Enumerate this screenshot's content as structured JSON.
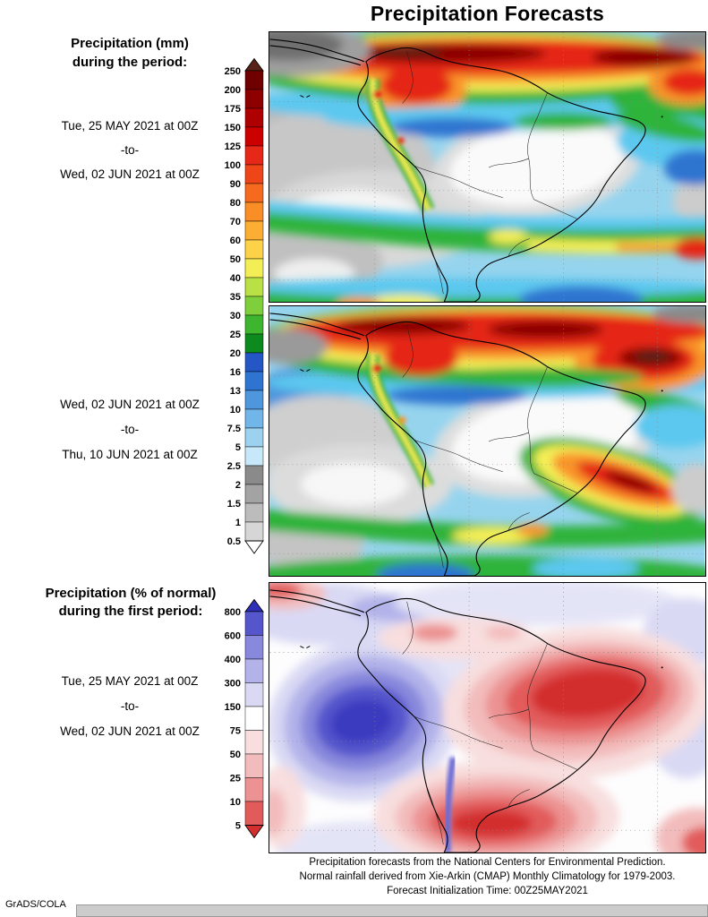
{
  "title": "Precipitation Forecasts",
  "left_column": {
    "block1": {
      "heading1": "Precipitation (mm)",
      "heading2": "during the period:",
      "start": "Tue, 25 MAY 2021 at 00Z",
      "to": "-to-",
      "end": "Wed, 02 JUN 2021 at 00Z"
    },
    "block2": {
      "start": "Wed, 02 JUN 2021 at 00Z",
      "to": "-to-",
      "end": "Thu, 10 JUN 2021 at 00Z"
    },
    "block3": {
      "heading1": "Precipitation (% of normal)",
      "heading2": "during the first period:",
      "start": "Tue, 25 MAY 2021 at 00Z",
      "to": "-to-",
      "end": "Wed, 02 JUN 2021 at 00Z"
    }
  },
  "colorbar_mm": {
    "units": "mm",
    "arrow_top": "#5a2317",
    "arrow_bottom": "#ffffff",
    "labels": [
      "250",
      "200",
      "175",
      "150",
      "125",
      "100",
      "90",
      "80",
      "70",
      "60",
      "50",
      "40",
      "35",
      "30",
      "25",
      "20",
      "16",
      "13",
      "10",
      "7.5",
      "5",
      "2.5",
      "2",
      "1.5",
      "1",
      "0.5"
    ],
    "colors": [
      "#700000",
      "#8e0000",
      "#ae0000",
      "#cd0000",
      "#e52817",
      "#ef4619",
      "#f56a1e",
      "#f98d26",
      "#fbae33",
      "#fdd148",
      "#f4ee56",
      "#b9e045",
      "#7fce3c",
      "#3eb52f",
      "#0c8a1e",
      "#2457c5",
      "#2f74d0",
      "#4f97dd",
      "#72b5e8",
      "#9cd1f0",
      "#c6e8f8",
      "#8a8a8a",
      "#a3a3a3",
      "#bcbcbc",
      "#d6d6d6"
    ]
  },
  "colorbar_pct": {
    "units": "% of normal",
    "arrow_top": "#2e2eb8",
    "arrow_bottom": "#d32f2f",
    "labels": [
      "800",
      "600",
      "400",
      "300",
      "150",
      "75",
      "50",
      "25",
      "10",
      "5"
    ],
    "colors": [
      "#5555cc",
      "#8888dd",
      "#b3b3ea",
      "#d9d9f4",
      "#ffffff",
      "#f8dede",
      "#f3bcbc",
      "#ec9292",
      "#e25b5b"
    ]
  },
  "footer": {
    "line1": "Precipitation forecasts from the National Centers for Environmental Prediction.",
    "line2": "Normal rainfall derived from Xie-Arkin (CMAP) Monthly Climatology for 1979-2003.",
    "line3": "Forecast Initialization Time: 00Z25MAY2021"
  },
  "credit": "GrADS/COLA"
}
